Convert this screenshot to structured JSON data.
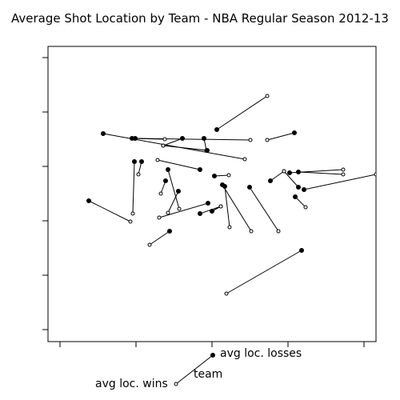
{
  "chart_data": {
    "type": "scatter",
    "title": "Average Shot Location by Team - NBA Regular Season 2012-13",
    "xlabel": "",
    "ylabel": "",
    "grid": false,
    "legend_position": "bottom-center",
    "legend": {
      "losses_label": "avg loc. losses",
      "team_label": "team",
      "wins_label": "avg loc. wins"
    },
    "xlim": [
      0,
      500
    ],
    "ylim": [
      0,
      500
    ],
    "x_ticks": [
      75,
      170,
      265,
      360,
      455
    ],
    "y_ticks": [
      72,
      140,
      208,
      276,
      344,
      412
    ],
    "teams": [
      {
        "losses": [
          271,
          162
        ],
        "wins": [
          334,
          120
        ]
      },
      {
        "losses": [
          129,
          167
        ],
        "wins": [
          306,
          199
        ]
      },
      {
        "losses": [
          165,
          173
        ],
        "wins": [
          206,
          174
        ]
      },
      {
        "losses": [
          169,
          173
        ],
        "wins": [
          313,
          175
        ]
      },
      {
        "losses": [
          228,
          173
        ],
        "wins": [
          204,
          182
        ]
      },
      {
        "losses": [
          255,
          173
        ],
        "wins": [
          258,
          188
        ]
      },
      {
        "losses": [
          368,
          166
        ],
        "wins": [
          334,
          175
        ]
      },
      {
        "losses": [
          259,
          188
        ],
        "wins": [
          204,
          182
        ]
      },
      {
        "losses": [
          168,
          202
        ],
        "wins": [
          166,
          267
        ]
      },
      {
        "losses": [
          177,
          202
        ],
        "wins": [
          173,
          218
        ]
      },
      {
        "losses": [
          250,
          212
        ],
        "wins": [
          197,
          200
        ]
      },
      {
        "losses": [
          268,
          220
        ],
        "wins": [
          286,
          219
        ]
      },
      {
        "losses": [
          210,
          212
        ],
        "wins": [
          224,
          261
        ]
      },
      {
        "losses": [
          207,
          226
        ],
        "wins": [
          201,
          242
        ]
      },
      {
        "losses": [
          223,
          239
        ],
        "wins": [
          210,
          266
        ]
      },
      {
        "losses": [
          338,
          226
        ],
        "wins": [
          355,
          214
        ]
      },
      {
        "losses": [
          362,
          216
        ],
        "wins": [
          429,
          212
        ]
      },
      {
        "losses": [
          373,
          215
        ],
        "wins": [
          429,
          218
        ]
      },
      {
        "losses": [
          380,
          237
        ],
        "wins": [
          470,
          218
        ]
      },
      {
        "losses": [
          278,
          231
        ],
        "wins": [
          314,
          289
        ]
      },
      {
        "losses": [
          281,
          233
        ],
        "wins": [
          287,
          284
        ]
      },
      {
        "losses": [
          373,
          234
        ],
        "wins": [
          355,
          214
        ]
      },
      {
        "losses": [
          369,
          246
        ],
        "wins": [
          382,
          259
        ]
      },
      {
        "losses": [
          312,
          234
        ],
        "wins": [
          348,
          289
        ]
      },
      {
        "losses": [
          111,
          251
        ],
        "wins": [
          163,
          277
        ]
      },
      {
        "losses": [
          260,
          254
        ],
        "wins": [
          199,
          272
        ]
      },
      {
        "losses": [
          250,
          267
        ],
        "wins": [
          276,
          258
        ]
      },
      {
        "losses": [
          265,
          264
        ],
        "wins": [
          276,
          258
        ]
      },
      {
        "losses": [
          212,
          289
        ],
        "wins": [
          187,
          306
        ]
      },
      {
        "losses": [
          377,
          313
        ],
        "wins": [
          283,
          367
        ]
      }
    ]
  }
}
